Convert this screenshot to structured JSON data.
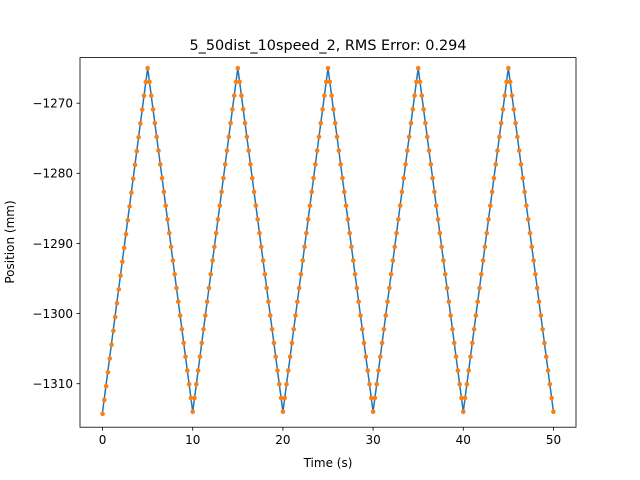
{
  "chart_data": {
    "type": "line",
    "title": "5_50dist_10speed_2, RMS Error: 0.294",
    "xlabel": "Time (s)",
    "ylabel": "Position (mm)",
    "xlim": [
      -2.5,
      52.5
    ],
    "ylim": [
      -1316.2,
      -1263.5
    ],
    "x_ticks": [
      0,
      10,
      20,
      30,
      40,
      50
    ],
    "x_tick_labels": [
      "0",
      "10",
      "20",
      "30",
      "40",
      "50"
    ],
    "y_ticks": [
      -1270,
      -1280,
      -1290,
      -1300,
      -1310
    ],
    "y_tick_labels": [
      "−1270",
      "−1280",
      "−1290",
      "−1300",
      "−1310"
    ],
    "grid": false,
    "legend": "none",
    "series": [
      {
        "style": "line",
        "color": "#1f77b4",
        "x": [
          0,
          5,
          10,
          15,
          20,
          25,
          30,
          35,
          40,
          45,
          50
        ],
        "y": [
          -1314,
          -1265,
          -1314,
          -1265,
          -1314,
          -1265,
          -1314,
          -1265,
          -1314,
          -1265,
          -1314
        ]
      },
      {
        "style": "markers",
        "color": "#ff7f0e",
        "x_start": 0,
        "x_end": 50,
        "x_step": 0.2,
        "peak_times": [
          0,
          5,
          10,
          15,
          20,
          25,
          30,
          35,
          40,
          45,
          50
        ],
        "peak_values": [
          -1314.3,
          -1265,
          -1314,
          -1265,
          -1314,
          -1265,
          -1314,
          -1265,
          -1314,
          -1265,
          -1314
        ]
      }
    ]
  }
}
